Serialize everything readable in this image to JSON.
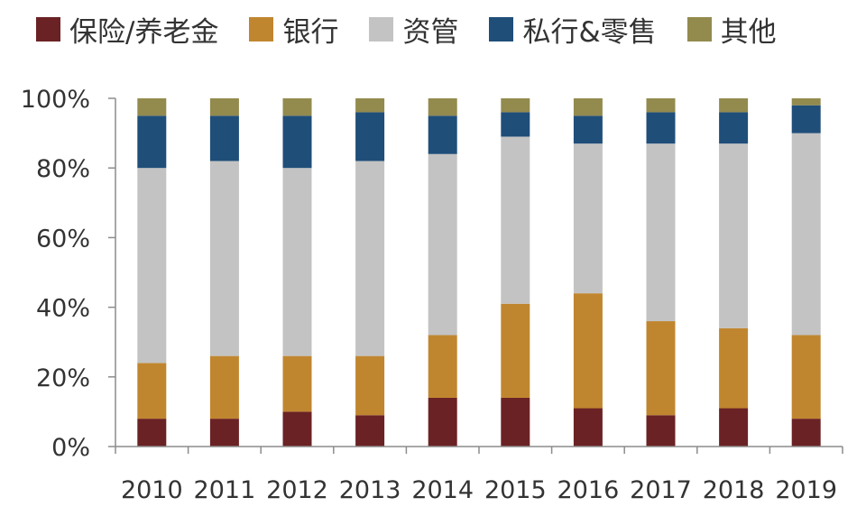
{
  "chart_data": {
    "type": "bar",
    "stacked": true,
    "categories": [
      "2010",
      "2011",
      "2012",
      "2013",
      "2014",
      "2015",
      "2016",
      "2017",
      "2018",
      "2019"
    ],
    "series": [
      {
        "name": "保险/养老金",
        "color": "#6b2224",
        "values": [
          8,
          8,
          10,
          9,
          14,
          14,
          11,
          9,
          11,
          8
        ]
      },
      {
        "name": "银行",
        "color": "#c0862f",
        "values": [
          16,
          18,
          16,
          17,
          18,
          27,
          33,
          27,
          23,
          24
        ]
      },
      {
        "name": "资管",
        "color": "#c3c3c3",
        "values": [
          56,
          56,
          54,
          56,
          52,
          48,
          43,
          51,
          53,
          58
        ]
      },
      {
        "name": "私行&零售",
        "color": "#1f4e79",
        "values": [
          15,
          13,
          15,
          14,
          11,
          7,
          8,
          9,
          9,
          8
        ]
      },
      {
        "name": "其他",
        "color": "#938a4e",
        "values": [
          5,
          5,
          5,
          4,
          5,
          4,
          5,
          4,
          4,
          2
        ]
      }
    ],
    "ylim": [
      0,
      100
    ],
    "yticks": [
      "0%",
      "20%",
      "40%",
      "60%",
      "80%",
      "100%"
    ],
    "legend_position": "top",
    "grid": false
  }
}
